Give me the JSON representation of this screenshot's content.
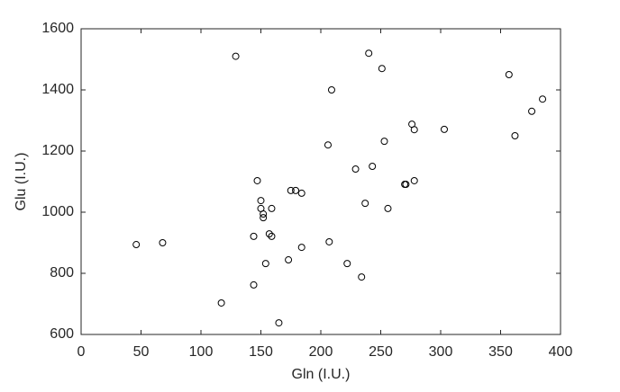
{
  "chart_data": {
    "type": "scatter",
    "xlabel": "Gln (I.U.)",
    "ylabel": "Glu (I.U.)",
    "xlim": [
      0,
      400
    ],
    "ylim": [
      600,
      1600
    ],
    "xticks": [
      0,
      50,
      100,
      150,
      200,
      250,
      300,
      350,
      400
    ],
    "yticks": [
      600,
      800,
      1000,
      1200,
      1400,
      1600
    ],
    "color": "#000000",
    "grid": false,
    "series": [
      {
        "x": [
          129,
          240,
          251,
          209,
          357,
          385,
          376,
          362,
          303,
          276,
          278,
          253,
          206,
          229,
          243,
          270,
          271,
          278,
          147,
          175,
          179,
          184,
          150,
          150,
          159,
          256,
          237,
          152,
          152,
          144,
          157,
          159,
          46,
          68,
          207,
          184,
          154,
          173,
          222,
          234,
          144,
          117,
          165
        ],
        "values": [
          1510,
          1520,
          1470,
          1400,
          1450,
          1370,
          1330,
          1250,
          1271,
          1288,
          1270,
          1232,
          1220,
          1141,
          1150,
          1091,
          1091,
          1103,
          1103,
          1071,
          1071,
          1062,
          1038,
          1012,
          1012,
          1012,
          1029,
          994,
          982,
          921,
          929,
          921,
          894,
          900,
          903,
          885,
          832,
          844,
          832,
          788,
          762,
          703,
          638
        ]
      }
    ]
  }
}
